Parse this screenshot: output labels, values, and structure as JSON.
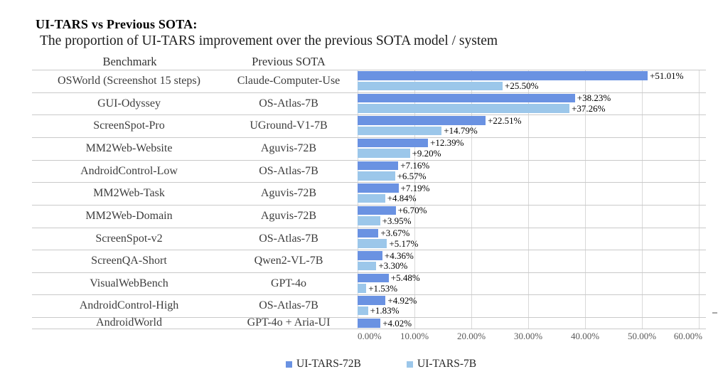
{
  "title": "UI-TARS vs Previous SOTA:",
  "subtitle": "The proportion of UI-TARS improvement over the previous SOTA model / system",
  "columns": {
    "benchmark": "Benchmark",
    "previous_sota": "Previous SOTA"
  },
  "legend": [
    {
      "label": "UI-TARS-72B",
      "color": "#6a92e2"
    },
    {
      "label": "UI-TARS-7B",
      "color": "#9cc7ea"
    }
  ],
  "chart_data": {
    "type": "bar",
    "orientation": "horizontal",
    "title": "UI-TARS vs Previous SOTA:",
    "subtitle": "The proportion of UI-TARS improvement over the previous SOTA model / system",
    "xlim": [
      0,
      60
    ],
    "grid": true,
    "legend_position": "bottom",
    "value_format": "+0.00%",
    "series_names": [
      "UI-TARS-72B",
      "UI-TARS-7B"
    ],
    "x_axis": {
      "ticks": [
        {
          "value": 0,
          "label": "0.00%"
        },
        {
          "value": 10,
          "label": "10.00%"
        },
        {
          "value": 20,
          "label": "20.00%"
        },
        {
          "value": 30,
          "label": "30.00%"
        },
        {
          "value": 40,
          "label": "40.00%"
        },
        {
          "value": 50,
          "label": "50.00%"
        },
        {
          "value": 60,
          "label": "60.00%"
        }
      ]
    },
    "rows": [
      {
        "benchmark": "OSWorld (Screenshot 15 steps)",
        "previous_sota": "Claude-Computer-Use",
        "value_72b": 51.01,
        "label_72b": "+51.01%",
        "value_7b": 25.5,
        "label_7b": "+25.50%"
      },
      {
        "benchmark": "GUI-Odyssey",
        "previous_sota": "OS-Atlas-7B",
        "value_72b": 38.23,
        "label_72b": "+38.23%",
        "value_7b": 37.26,
        "label_7b": "+37.26%"
      },
      {
        "benchmark": "ScreenSpot-Pro",
        "previous_sota": "UGround-V1-7B",
        "value_72b": 22.51,
        "label_72b": "+22.51%",
        "value_7b": 14.79,
        "label_7b": "+14.79%"
      },
      {
        "benchmark": "MM2Web-Website",
        "previous_sota": "Aguvis-72B",
        "value_72b": 12.39,
        "label_72b": "+12.39%",
        "value_7b": 9.2,
        "label_7b": "+9.20%"
      },
      {
        "benchmark": "AndroidControl-Low",
        "previous_sota": "OS-Atlas-7B",
        "value_72b": 7.16,
        "label_72b": "+7.16%",
        "value_7b": 6.57,
        "label_7b": "+6.57%"
      },
      {
        "benchmark": "MM2Web-Task",
        "previous_sota": "Aguvis-72B",
        "value_72b": 7.19,
        "label_72b": "+7.19%",
        "value_7b": 4.84,
        "label_7b": "+4.84%"
      },
      {
        "benchmark": "MM2Web-Domain",
        "previous_sota": "Aguvis-72B",
        "value_72b": 6.7,
        "label_72b": "+6.70%",
        "value_7b": 3.95,
        "label_7b": "+3.95%"
      },
      {
        "benchmark": "ScreenSpot-v2",
        "previous_sota": "OS-Atlas-7B",
        "value_72b": 3.67,
        "label_72b": "+3.67%",
        "value_7b": 5.17,
        "label_7b": "+5.17%"
      },
      {
        "benchmark": "ScreenQA-Short",
        "previous_sota": "Qwen2-VL-7B",
        "value_72b": 4.36,
        "label_72b": "+4.36%",
        "value_7b": 3.3,
        "label_7b": "+3.30%"
      },
      {
        "benchmark": "VisualWebBench",
        "previous_sota": "GPT-4o",
        "value_72b": 5.48,
        "label_72b": "+5.48%",
        "value_7b": 1.53,
        "label_7b": "+1.53%"
      },
      {
        "benchmark": "AndroidControl-High",
        "previous_sota": "OS-Atlas-7B",
        "value_72b": 4.92,
        "label_72b": "+4.92%",
        "value_7b": 1.83,
        "label_7b": "+1.83%"
      },
      {
        "benchmark": "AndroidWorld",
        "previous_sota": "GPT-4o + Aria-UI",
        "value_72b": 4.02,
        "label_72b": "+4.02%",
        "value_7b": null,
        "label_7b": null
      }
    ]
  }
}
